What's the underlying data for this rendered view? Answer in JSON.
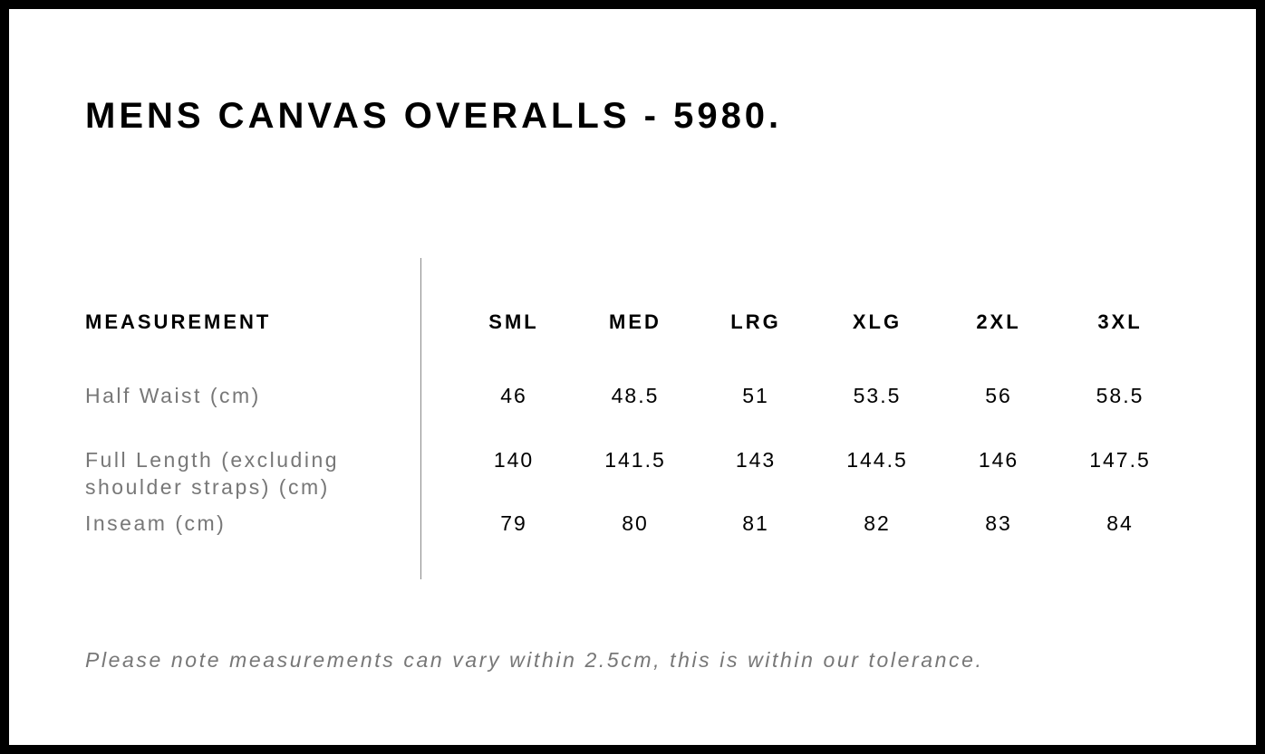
{
  "header": {
    "title": "MENS CANVAS OVERALLS - 5980."
  },
  "table": {
    "columns": [
      "MEASUREMENT",
      "SML",
      "MED",
      "LRG",
      "XLG",
      "2XL",
      "3XL"
    ],
    "rows": [
      [
        "Half Waist (cm)",
        "46",
        "48.5",
        "51",
        "53.5",
        "56",
        "58.5"
      ],
      [
        "Full Length (excluding shoulder straps) (cm)",
        "140",
        "141.5",
        "143",
        "144.5",
        "146",
        "147.5"
      ],
      [
        "Inseam (cm)",
        "79",
        "80",
        "81",
        "82",
        "83",
        "84"
      ]
    ]
  },
  "note": "Please note measurements can vary within 2.5cm, this is within our tolerance."
}
